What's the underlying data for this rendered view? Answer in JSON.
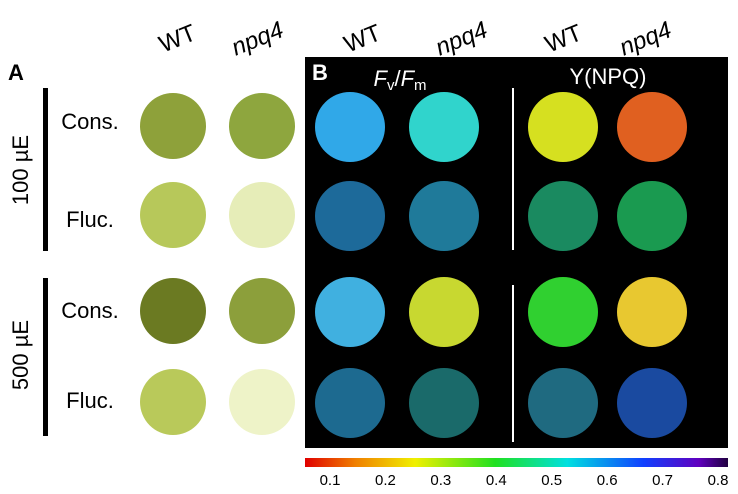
{
  "panel_a": {
    "letter": "A",
    "columns": [
      "WT",
      "npq4"
    ],
    "groups": [
      {
        "label": "100 µE",
        "rows": [
          "Cons.",
          "Fluc."
        ]
      },
      {
        "label": "500 µE",
        "rows": [
          "Cons.",
          "Fluc."
        ]
      }
    ]
  },
  "panel_b": {
    "letter": "B",
    "columns": [
      "WT",
      "npq4",
      "WT",
      "npq4"
    ],
    "fvfm_label": [
      "F",
      "v",
      "/",
      "F",
      "m"
    ],
    "ynpq_label": "Y(NPQ)"
  },
  "colorbar": {
    "ticks": [
      0.1,
      0.2,
      0.3,
      0.4,
      0.5,
      0.6,
      0.7,
      0.8
    ]
  }
}
